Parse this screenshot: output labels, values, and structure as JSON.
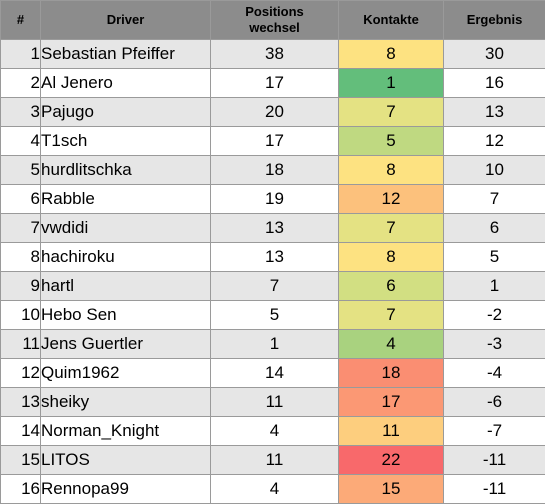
{
  "headers": {
    "pos": "#",
    "driver": "Driver",
    "positions_line1": "Positions",
    "positions_line2": "wechsel",
    "kontakte": "Kontakte",
    "ergebnis": "Ergebnis"
  },
  "rows": [
    {
      "pos": "1",
      "driver": "Sebastian Pfeiffer",
      "positionswechsel": "38",
      "kontakte": "8",
      "kontakte_color": "#fde281",
      "ergebnis": "30"
    },
    {
      "pos": "2",
      "driver": "Al Jenero",
      "positionswechsel": "17",
      "kontakte": "1",
      "kontakte_color": "#63be7b",
      "ergebnis": "16"
    },
    {
      "pos": "3",
      "driver": "Pajugo",
      "positionswechsel": "20",
      "kontakte": "7",
      "kontakte_color": "#e4e283",
      "ergebnis": "13"
    },
    {
      "pos": "4",
      "driver": "T1sch",
      "positionswechsel": "17",
      "kontakte": "5",
      "kontakte_color": "#bfd981",
      "ergebnis": "12"
    },
    {
      "pos": "5",
      "driver": "hurdlitschka",
      "positionswechsel": "18",
      "kontakte": "8",
      "kontakte_color": "#fde281",
      "ergebnis": "10"
    },
    {
      "pos": "6",
      "driver": "Rabble",
      "positionswechsel": "19",
      "kontakte": "12",
      "kontakte_color": "#fcc17c",
      "ergebnis": "7"
    },
    {
      "pos": "7",
      "driver": "vwdidi",
      "positionswechsel": "13",
      "kontakte": "7",
      "kontakte_color": "#e4e283",
      "ergebnis": "6"
    },
    {
      "pos": "8",
      "driver": "hachiroku",
      "positionswechsel": "13",
      "kontakte": "8",
      "kontakte_color": "#fde281",
      "ergebnis": "5"
    },
    {
      "pos": "9",
      "driver": "hartl",
      "positionswechsel": "7",
      "kontakte": "6",
      "kontakte_color": "#d2df82",
      "ergebnis": "1"
    },
    {
      "pos": "10",
      "driver": "Hebo Sen",
      "positionswechsel": "5",
      "kontakte": "7",
      "kontakte_color": "#e4e283",
      "ergebnis": "-2"
    },
    {
      "pos": "11",
      "driver": "Jens Guertler",
      "positionswechsel": "1",
      "kontakte": "4",
      "kontakte_color": "#a9d27f",
      "ergebnis": "-3"
    },
    {
      "pos": "12",
      "driver": "Quim1962",
      "positionswechsel": "14",
      "kontakte": "18",
      "kontakte_color": "#fa8e72",
      "ergebnis": "-4"
    },
    {
      "pos": "13",
      "driver": "sheiky",
      "positionswechsel": "11",
      "kontakte": "17",
      "kontakte_color": "#fb9874",
      "ergebnis": "-6"
    },
    {
      "pos": "14",
      "driver": "Norman_Knight",
      "positionswechsel": "4",
      "kontakte": "11",
      "kontakte_color": "#fdce7e",
      "ergebnis": "-7"
    },
    {
      "pos": "15",
      "driver": "LITOS",
      "positionswechsel": "11",
      "kontakte": "22",
      "kontakte_color": "#f8696b",
      "ergebnis": "-11"
    },
    {
      "pos": "16",
      "driver": "Rennopa99",
      "positionswechsel": "4",
      "kontakte": "15",
      "kontakte_color": "#fcaa78",
      "ergebnis": "-11"
    }
  ]
}
